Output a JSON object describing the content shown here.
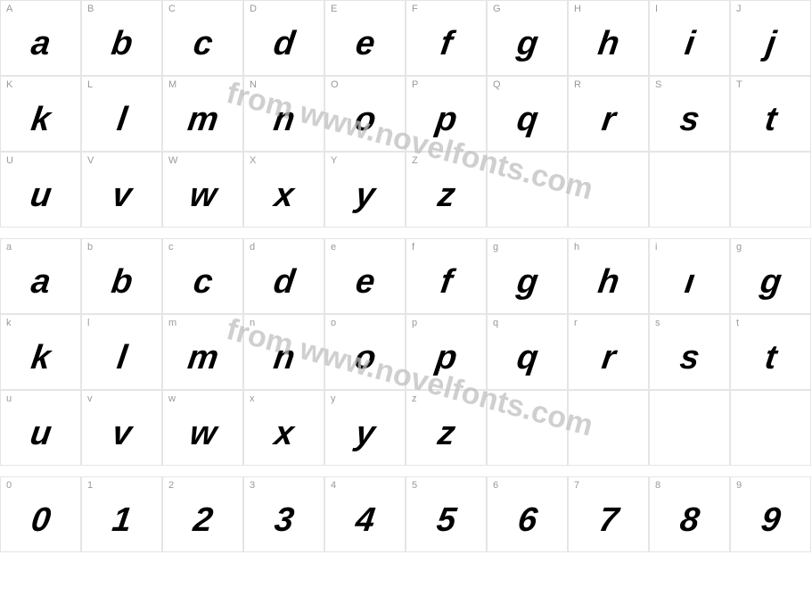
{
  "watermark_text": "from www.novelfonts.com",
  "colors": {
    "border": "#e5e5e5",
    "label": "#999999",
    "glyph": "#000000",
    "watermark": "#bfbfbf",
    "background": "#ffffff"
  },
  "rows": [
    {
      "section": "upper1",
      "cells": [
        {
          "label": "A",
          "glyph": "a"
        },
        {
          "label": "B",
          "glyph": "b"
        },
        {
          "label": "C",
          "glyph": "c"
        },
        {
          "label": "D",
          "glyph": "d"
        },
        {
          "label": "E",
          "glyph": "e"
        },
        {
          "label": "F",
          "glyph": "f"
        },
        {
          "label": "G",
          "glyph": "g"
        },
        {
          "label": "H",
          "glyph": "h"
        },
        {
          "label": "I",
          "glyph": "i"
        },
        {
          "label": "J",
          "glyph": "j"
        }
      ]
    },
    {
      "section": "upper2",
      "cells": [
        {
          "label": "K",
          "glyph": "k"
        },
        {
          "label": "L",
          "glyph": "l"
        },
        {
          "label": "M",
          "glyph": "m"
        },
        {
          "label": "N",
          "glyph": "n"
        },
        {
          "label": "O",
          "glyph": "o"
        },
        {
          "label": "P",
          "glyph": "p"
        },
        {
          "label": "Q",
          "glyph": "q"
        },
        {
          "label": "R",
          "glyph": "r"
        },
        {
          "label": "S",
          "glyph": "s"
        },
        {
          "label": "T",
          "glyph": "t"
        }
      ]
    },
    {
      "section": "upper3",
      "cells": [
        {
          "label": "U",
          "glyph": "u"
        },
        {
          "label": "V",
          "glyph": "v"
        },
        {
          "label": "W",
          "glyph": "w"
        },
        {
          "label": "X",
          "glyph": "x"
        },
        {
          "label": "Y",
          "glyph": "y"
        },
        {
          "label": "Z",
          "glyph": "z"
        },
        {
          "label": "",
          "glyph": "",
          "empty": true
        },
        {
          "label": "",
          "glyph": "",
          "empty": true
        },
        {
          "label": "",
          "glyph": "",
          "empty": true
        },
        {
          "label": "",
          "glyph": "",
          "empty": true
        }
      ]
    },
    {
      "spacer": true
    },
    {
      "section": "lower1",
      "cells": [
        {
          "label": "a",
          "glyph": "a"
        },
        {
          "label": "b",
          "glyph": "b"
        },
        {
          "label": "c",
          "glyph": "c"
        },
        {
          "label": "d",
          "glyph": "d"
        },
        {
          "label": "e",
          "glyph": "e"
        },
        {
          "label": "f",
          "glyph": "f"
        },
        {
          "label": "g",
          "glyph": "g"
        },
        {
          "label": "h",
          "glyph": "h"
        },
        {
          "label": "i",
          "glyph": "ı"
        },
        {
          "label": "g",
          "glyph": "g"
        }
      ]
    },
    {
      "section": "lower2",
      "cells": [
        {
          "label": "k",
          "glyph": "k"
        },
        {
          "label": "l",
          "glyph": "l"
        },
        {
          "label": "m",
          "glyph": "m"
        },
        {
          "label": "n",
          "glyph": "n"
        },
        {
          "label": "o",
          "glyph": "o"
        },
        {
          "label": "p",
          "glyph": "p"
        },
        {
          "label": "q",
          "glyph": "q"
        },
        {
          "label": "r",
          "glyph": "r"
        },
        {
          "label": "s",
          "glyph": "s"
        },
        {
          "label": "t",
          "glyph": "t"
        }
      ]
    },
    {
      "section": "lower3",
      "cells": [
        {
          "label": "u",
          "glyph": "u"
        },
        {
          "label": "v",
          "glyph": "v"
        },
        {
          "label": "w",
          "glyph": "w"
        },
        {
          "label": "x",
          "glyph": "x"
        },
        {
          "label": "y",
          "glyph": "y"
        },
        {
          "label": "z",
          "glyph": "z"
        },
        {
          "label": "",
          "glyph": "",
          "empty": true
        },
        {
          "label": "",
          "glyph": "",
          "empty": true
        },
        {
          "label": "",
          "glyph": "",
          "empty": true
        },
        {
          "label": "",
          "glyph": "",
          "empty": true
        }
      ]
    },
    {
      "spacer": true
    },
    {
      "section": "digits",
      "cells": [
        {
          "label": "0",
          "glyph": "0"
        },
        {
          "label": "1",
          "glyph": "1"
        },
        {
          "label": "2",
          "glyph": "2"
        },
        {
          "label": "3",
          "glyph": "3"
        },
        {
          "label": "4",
          "glyph": "4"
        },
        {
          "label": "5",
          "glyph": "5"
        },
        {
          "label": "6",
          "glyph": "6"
        },
        {
          "label": "7",
          "glyph": "7"
        },
        {
          "label": "8",
          "glyph": "8"
        },
        {
          "label": "9",
          "glyph": "9"
        }
      ]
    }
  ]
}
